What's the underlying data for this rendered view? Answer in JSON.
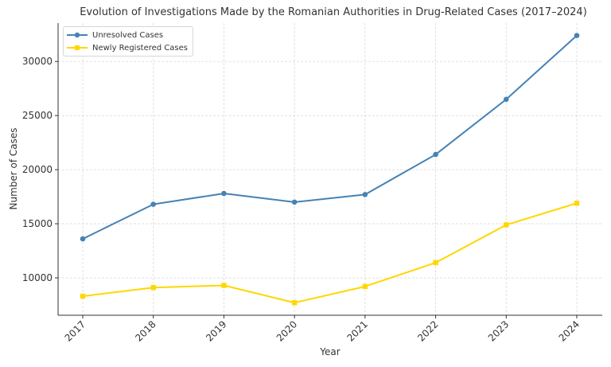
{
  "chart_data": {
    "type": "line",
    "title": "Evolution of Investigations Made by the Romanian Authorities in Drug-Related Cases (2017–2024)",
    "xlabel": "Year",
    "ylabel": "Number of Cases",
    "categories": [
      "2017",
      "2018",
      "2019",
      "2020",
      "2021",
      "2022",
      "2023",
      "2024"
    ],
    "series": [
      {
        "name": "Unresolved Cases",
        "color": "#4682B4",
        "marker": "circle",
        "values": [
          13600,
          16800,
          17800,
          17000,
          17700,
          21400,
          26500,
          32400
        ]
      },
      {
        "name": "Newly Registered Cases",
        "color": "#FFD700",
        "marker": "square",
        "values": [
          8300,
          9100,
          9300,
          7700,
          9200,
          11400,
          14900,
          16900
        ]
      }
    ],
    "yticks": [
      10000,
      15000,
      20000,
      25000,
      30000
    ],
    "ylim": [
      6540,
      33550
    ],
    "grid": true,
    "legend_position": "upper left"
  }
}
